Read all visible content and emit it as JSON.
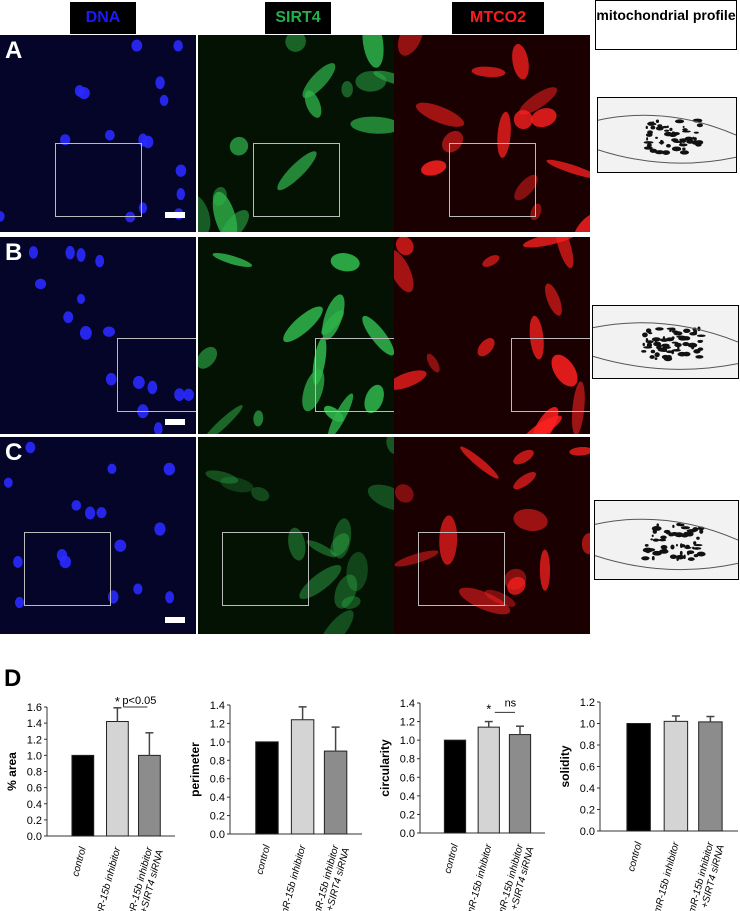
{
  "headers": {
    "dna": "DNA",
    "sirt4": "SIRT4",
    "mtco2": "MTCO2",
    "profile": "mitochondrial profile"
  },
  "colors": {
    "dna": "#1a1aff",
    "sirt4": "#22b04a",
    "mtco2": "#ff1a1a"
  },
  "rows": [
    {
      "label": "A"
    },
    {
      "label": "B"
    },
    {
      "label": "C"
    }
  ],
  "panel_d_label": "D",
  "chart_data": [
    {
      "type": "bar",
      "ylabel": "% area",
      "categories": [
        "control",
        "mR-15b inhibitor",
        "mR-15b inhibitor +SIRT4 siRNA"
      ],
      "values": [
        1.0,
        1.42,
        1.0
      ],
      "errors": [
        0,
        0.17,
        0.28
      ],
      "ylim": [
        0,
        1.6
      ],
      "ticks": [
        "0.0",
        "0.2",
        "0.4",
        "0.6",
        "0.8",
        "1.0",
        "1.2",
        "1.4",
        "1.6"
      ],
      "annotations": [
        "*",
        "p<0.05"
      ],
      "bar_colors": [
        "#000000",
        "#d4d4d4",
        "#8c8c8c"
      ]
    },
    {
      "type": "bar",
      "ylabel": "perimeter",
      "categories": [
        "control",
        "mR-15b inhibitor",
        "mR-15b inhibitor +SIRT4 siRNA"
      ],
      "values": [
        1.0,
        1.24,
        0.9
      ],
      "errors": [
        0,
        0.14,
        0.26
      ],
      "ylim": [
        0,
        1.4
      ],
      "ticks": [
        "0.0",
        "0.2",
        "0.4",
        "0.6",
        "0.8",
        "1.0",
        "1.2",
        "1.4"
      ],
      "annotations": [],
      "bar_colors": [
        "#000000",
        "#d4d4d4",
        "#8c8c8c"
      ]
    },
    {
      "type": "bar",
      "ylabel": "circularity",
      "categories": [
        "control",
        "mR-15b inhibitor",
        "mR-15b inhibitor +SIRT4 siRNA"
      ],
      "values": [
        1.0,
        1.14,
        1.06
      ],
      "errors": [
        0,
        0.06,
        0.09
      ],
      "ylim": [
        0,
        1.4
      ],
      "ticks": [
        "0.0",
        "0.2",
        "0.4",
        "0.6",
        "0.8",
        "1.0",
        "1.2",
        "1.4"
      ],
      "annotations": [
        "*",
        "ns"
      ],
      "bar_colors": [
        "#000000",
        "#d4d4d4",
        "#8c8c8c"
      ]
    },
    {
      "type": "bar",
      "ylabel": "solidity",
      "categories": [
        "control",
        "mR-15b inhibitor",
        "mR-15b inhibitor +SIRT4 siRNA"
      ],
      "values": [
        1.0,
        1.02,
        1.015
      ],
      "errors": [
        0,
        0.05,
        0.05
      ],
      "ylim": [
        0,
        1.2
      ],
      "ticks": [
        "0.0",
        "0.2",
        "0.4",
        "0.6",
        "0.8",
        "1.0",
        "1.2"
      ],
      "annotations": [],
      "bar_colors": [
        "#000000",
        "#d4d4d4",
        "#8c8c8c"
      ]
    }
  ]
}
